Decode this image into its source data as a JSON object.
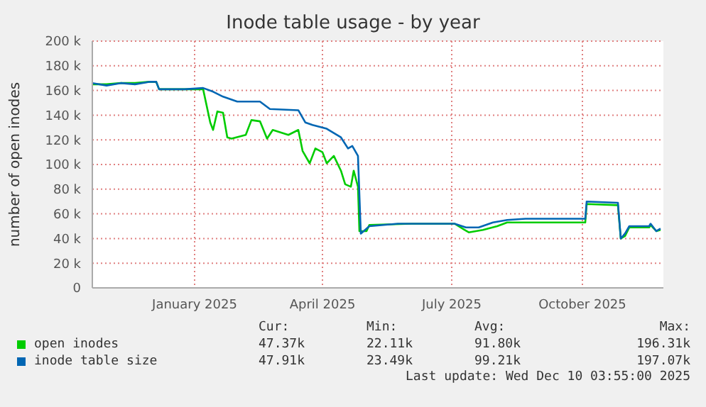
{
  "chart_data": {
    "type": "line",
    "title": "Inode table usage - by year",
    "ylabel": "number of open inodes",
    "xlim": [
      "2024-11-05",
      "2025-12-12"
    ],
    "xticks": [
      {
        "value": "2025-01-16",
        "label": "January 2025"
      },
      {
        "value": "2025-04-16",
        "label": "April 2025"
      },
      {
        "value": "2025-07-16",
        "label": "July 2025"
      },
      {
        "value": "2025-10-16",
        "label": "October 2025"
      }
    ],
    "ylim": [
      0,
      200000
    ],
    "yticks": [
      0,
      {
        "value": 20000,
        "label": "20 k"
      },
      {
        "value": 40000,
        "label": "40 k"
      },
      {
        "value": 60000,
        "label": "60 k"
      },
      {
        "value": 80000,
        "label": "80 k"
      },
      {
        "value": 100000,
        "label": "100 k"
      },
      {
        "value": 120000,
        "label": "120 k"
      },
      {
        "value": 140000,
        "label": "140 k"
      },
      {
        "value": 160000,
        "label": "160 k"
      },
      {
        "value": 180000,
        "label": "180 k"
      },
      {
        "value": 200000,
        "label": "200 k"
      }
    ],
    "grid": true,
    "legend": "bottom",
    "marker": "none",
    "line_style": "solid",
    "annotations": [
      "Cur:",
      "Min:",
      "Avg:",
      "Max:",
      "47.37k",
      "22.11k",
      "91.80k",
      "196.31k",
      "47.91k",
      "23.49k",
      "99.21k",
      "197.07k",
      "Last update: Wed Dec 10 03:55:00 2025"
    ],
    "series": [
      {
        "name": "open inodes",
        "color": "#00cc00",
        "x": [
          "2024-11-05",
          "2024-11-15",
          "2024-11-25",
          "2024-12-05",
          "2024-12-15",
          "2024-12-20",
          "2024-12-22",
          "2025-01-09",
          "2025-01-22",
          "2025-01-27",
          "2025-01-29",
          "2025-02-01",
          "2025-02-05",
          "2025-02-08",
          "2025-02-11",
          "2025-02-21",
          "2025-02-25",
          "2025-03-03",
          "2025-03-08",
          "2025-03-12",
          "2025-03-23",
          "2025-03-30",
          "2025-04-02",
          "2025-04-07",
          "2025-04-11",
          "2025-04-16",
          "2025-04-19",
          "2025-04-24",
          "2025-04-29",
          "2025-05-02",
          "2025-05-06",
          "2025-05-08",
          "2025-05-11",
          "2025-05-12",
          "2025-05-17",
          "2025-05-19",
          "2025-06-18",
          "2025-07-18",
          "2025-07-25",
          "2025-07-28",
          "2025-08-07",
          "2025-08-17",
          "2025-08-24",
          "2025-09-16",
          "2025-10-18",
          "2025-10-19",
          "2025-11-10",
          "2025-11-12",
          "2025-11-15",
          "2025-11-18",
          "2025-12-02",
          "2025-12-03",
          "2025-12-07",
          "2025-12-10"
        ],
        "values": [
          165000,
          165000,
          166000,
          166000,
          167000,
          167000,
          161000,
          161000,
          161000,
          134000,
          128000,
          143000,
          142000,
          122000,
          121000,
          124000,
          136000,
          135000,
          121000,
          128000,
          124000,
          128000,
          111000,
          101000,
          113000,
          110000,
          101000,
          107000,
          95000,
          84000,
          82000,
          95000,
          82000,
          46000,
          46000,
          51000,
          52000,
          52000,
          47000,
          45000,
          47000,
          50000,
          53000,
          53000,
          53000,
          68000,
          67000,
          40000,
          42000,
          49000,
          49000,
          51000,
          46000,
          47000
        ]
      },
      {
        "name": "inode table size",
        "color": "#0066b3",
        "x": [
          "2024-11-05",
          "2024-11-15",
          "2024-11-25",
          "2024-12-05",
          "2024-12-15",
          "2024-12-20",
          "2024-12-22",
          "2025-01-09",
          "2025-01-22",
          "2025-01-29",
          "2025-02-05",
          "2025-02-15",
          "2025-03-03",
          "2025-03-10",
          "2025-03-30",
          "2025-04-04",
          "2025-04-09",
          "2025-04-19",
          "2025-04-29",
          "2025-05-04",
          "2025-05-07",
          "2025-05-11",
          "2025-05-13",
          "2025-05-19",
          "2025-06-08",
          "2025-06-28",
          "2025-07-18",
          "2025-07-26",
          "2025-08-04",
          "2025-08-14",
          "2025-08-24",
          "2025-09-06",
          "2025-09-26",
          "2025-10-18",
          "2025-10-19",
          "2025-11-10",
          "2025-11-12",
          "2025-11-15",
          "2025-11-18",
          "2025-12-02",
          "2025-12-03",
          "2025-12-07",
          "2025-12-10"
        ],
        "values": [
          166000,
          164000,
          166000,
          165000,
          167000,
          167000,
          161000,
          161000,
          162000,
          159000,
          155000,
          151000,
          151000,
          145000,
          144000,
          134000,
          132000,
          129000,
          122000,
          113000,
          115000,
          107000,
          44000,
          50000,
          52000,
          52000,
          52000,
          49000,
          49000,
          53000,
          55000,
          56000,
          56000,
          56000,
          70000,
          69000,
          40000,
          44000,
          50000,
          50000,
          52000,
          46000,
          48000
        ]
      }
    ]
  }
}
